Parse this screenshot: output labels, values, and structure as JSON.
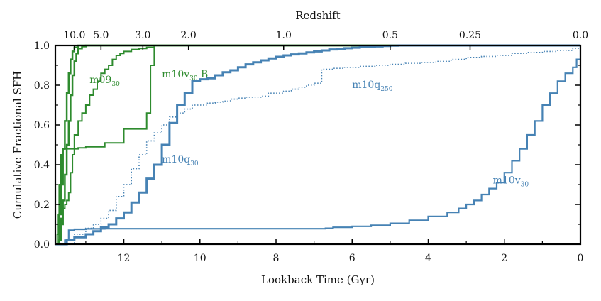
{
  "chart_data": {
    "type": "line",
    "title": "",
    "xlabel": "Lookback Time (Gyr)",
    "ylabel": "Cumulative Fractional SFH",
    "top_axis_label": "Redshift",
    "xlim": [
      13.8,
      0
    ],
    "ylim": [
      0.0,
      1.0
    ],
    "x_ticks": [
      12,
      10,
      8,
      6,
      4,
      2,
      0
    ],
    "y_ticks": [
      0.0,
      0.2,
      0.4,
      0.6,
      0.8,
      1.0
    ],
    "x_tick_labels": [
      "12",
      "10",
      "8",
      "6",
      "4",
      "2",
      "0"
    ],
    "y_tick_labels": [
      "0.0",
      "0.2",
      "0.4",
      "0.6",
      "0.8",
      "1.0"
    ],
    "redshift_ticks": [
      {
        "label": "10.0",
        "t": 13.3
      },
      {
        "label": "5.0",
        "t": 12.6
      },
      {
        "label": "3.0",
        "t": 11.5
      },
      {
        "label": "2.0",
        "t": 10.3
      },
      {
        "label": "1.0",
        "t": 7.8
      },
      {
        "label": "0.5",
        "t": 5.0
      },
      {
        "label": "0.25",
        "t": 2.9
      },
      {
        "label": "0.0",
        "t": 0.0
      }
    ],
    "annotations": [
      {
        "name": "m09",
        "sub": "30",
        "t": 12.9,
        "y": 0.81,
        "color": "#2e8b2e"
      },
      {
        "name": "m10v",
        "sub": "30",
        "suffix": " B",
        "t": 11.0,
        "y": 0.84,
        "color": "#2e8b2e"
      },
      {
        "name": "m10q",
        "sub": "250",
        "t": 6.0,
        "y": 0.785,
        "color": "#4682b4"
      },
      {
        "name": "m10q",
        "sub": "30",
        "t": 11.0,
        "y": 0.41,
        "color": "#4682b4"
      },
      {
        "name": "m10v",
        "sub": "30",
        "t": 2.3,
        "y": 0.305,
        "color": "#4682b4"
      }
    ],
    "series": [
      {
        "name": "m10q30",
        "color": "#4682b4",
        "style": "solid",
        "width": 3,
        "x": [
          13.8,
          13.5,
          13.3,
          13.0,
          12.8,
          12.6,
          12.4,
          12.2,
          12.0,
          11.8,
          11.6,
          11.4,
          11.2,
          11.0,
          10.8,
          10.6,
          10.4,
          10.2,
          10.0,
          9.8,
          9.6,
          9.4,
          9.2,
          9.0,
          8.8,
          8.6,
          8.4,
          8.2,
          8.0,
          7.8,
          7.6,
          7.4,
          7.2,
          7.0,
          6.8,
          6.6,
          6.4,
          6.2,
          6.0,
          5.8,
          5.6,
          5.4,
          5.2,
          5.0,
          4.8,
          0.0
        ],
        "y": [
          0.0,
          0.02,
          0.035,
          0.05,
          0.065,
          0.085,
          0.1,
          0.13,
          0.16,
          0.21,
          0.26,
          0.33,
          0.4,
          0.5,
          0.61,
          0.7,
          0.76,
          0.82,
          0.83,
          0.835,
          0.85,
          0.865,
          0.875,
          0.89,
          0.905,
          0.915,
          0.925,
          0.935,
          0.943,
          0.95,
          0.955,
          0.96,
          0.965,
          0.97,
          0.975,
          0.98,
          0.983,
          0.986,
          0.989,
          0.991,
          0.993,
          0.995,
          0.997,
          0.999,
          1.0,
          1.0
        ]
      },
      {
        "name": "m10q250",
        "color": "#4682b4",
        "style": "dotted",
        "width": 1.6,
        "x": [
          13.8,
          13.3,
          13.0,
          12.8,
          12.6,
          12.4,
          12.2,
          12.0,
          11.8,
          11.6,
          11.4,
          11.2,
          11.0,
          10.8,
          10.6,
          10.4,
          10.2,
          10.0,
          9.8,
          9.6,
          9.4,
          9.2,
          9.0,
          8.8,
          8.6,
          8.4,
          8.2,
          8.0,
          7.8,
          7.6,
          7.4,
          7.2,
          7.0,
          6.8,
          6.5,
          6.2,
          5.8,
          5.4,
          5.0,
          4.6,
          4.2,
          3.8,
          3.4,
          3.0,
          2.6,
          2.2,
          1.8,
          1.4,
          1.0,
          0.6,
          0.2,
          0.0
        ],
        "y": [
          0.0,
          0.05,
          0.08,
          0.1,
          0.13,
          0.17,
          0.24,
          0.3,
          0.38,
          0.45,
          0.52,
          0.56,
          0.6,
          0.64,
          0.66,
          0.68,
          0.7,
          0.7,
          0.71,
          0.715,
          0.72,
          0.73,
          0.735,
          0.74,
          0.74,
          0.745,
          0.76,
          0.76,
          0.77,
          0.78,
          0.79,
          0.8,
          0.81,
          0.88,
          0.885,
          0.89,
          0.895,
          0.9,
          0.905,
          0.91,
          0.915,
          0.92,
          0.93,
          0.94,
          0.945,
          0.95,
          0.96,
          0.965,
          0.97,
          0.975,
          0.985,
          1.0
        ]
      },
      {
        "name": "m10v30",
        "color": "#4682b4",
        "style": "solid",
        "width": 2.2,
        "x": [
          13.8,
          13.55,
          13.45,
          13.3,
          13.0,
          12.5,
          12.0,
          11.0,
          10.0,
          9.0,
          8.0,
          7.0,
          6.7,
          6.5,
          6.0,
          5.5,
          5.0,
          4.5,
          4.0,
          3.5,
          3.2,
          3.0,
          2.8,
          2.6,
          2.4,
          2.2,
          2.0,
          1.8,
          1.6,
          1.4,
          1.2,
          1.0,
          0.8,
          0.6,
          0.4,
          0.2,
          0.1,
          0.0
        ],
        "y": [
          0.0,
          0.02,
          0.07,
          0.075,
          0.077,
          0.078,
          0.078,
          0.078,
          0.078,
          0.078,
          0.078,
          0.078,
          0.08,
          0.085,
          0.09,
          0.095,
          0.105,
          0.12,
          0.14,
          0.16,
          0.18,
          0.2,
          0.22,
          0.25,
          0.28,
          0.31,
          0.36,
          0.42,
          0.48,
          0.55,
          0.62,
          0.7,
          0.76,
          0.82,
          0.86,
          0.89,
          0.93,
          1.0
        ]
      },
      {
        "name": "m10v30 B",
        "color": "#2e8b2e",
        "style": "solid",
        "width": 2,
        "x": [
          13.8,
          13.75,
          13.72,
          13.7,
          13.65,
          13.6,
          13.4,
          13.2,
          13.0,
          12.8,
          12.6,
          12.5,
          12.3,
          12.1,
          12.0,
          12.0,
          11.6,
          11.4,
          11.3,
          11.3,
          11.2,
          11.2,
          0.0
        ],
        "y": [
          0.0,
          0.05,
          0.15,
          0.3,
          0.45,
          0.48,
          0.48,
          0.485,
          0.49,
          0.49,
          0.49,
          0.51,
          0.51,
          0.51,
          0.51,
          0.58,
          0.58,
          0.66,
          0.66,
          0.9,
          0.92,
          1.0,
          1.0
        ]
      },
      {
        "name": "m0930",
        "color": "#2e8b2e",
        "style": "solid",
        "width": 2,
        "x": [
          13.75,
          13.7,
          13.65,
          13.6,
          13.55,
          13.5,
          13.45,
          13.4,
          13.35,
          13.3,
          13.2,
          13.1,
          13.0,
          12.9,
          12.8,
          12.7,
          12.6,
          12.5,
          12.4,
          12.3,
          12.2,
          12.1,
          12.0,
          11.8,
          11.6,
          11.4,
          11.2,
          0.0
        ],
        "y": [
          0.0,
          0.06,
          0.13,
          0.18,
          0.2,
          0.22,
          0.26,
          0.36,
          0.45,
          0.55,
          0.62,
          0.66,
          0.7,
          0.75,
          0.78,
          0.82,
          0.86,
          0.88,
          0.9,
          0.93,
          0.95,
          0.96,
          0.97,
          0.98,
          0.985,
          0.99,
          1.0,
          1.0
        ]
      },
      {
        "name": "green-steep-1",
        "color": "#2e8b2e",
        "style": "solid",
        "width": 2.5,
        "x": [
          13.75,
          13.7,
          13.65,
          13.6,
          13.55,
          13.5,
          13.45,
          13.4,
          13.35,
          13.3,
          13.25,
          13.2,
          13.1,
          13.0,
          0.0
        ],
        "y": [
          0.0,
          0.02,
          0.1,
          0.22,
          0.35,
          0.5,
          0.62,
          0.75,
          0.85,
          0.92,
          0.96,
          0.985,
          0.995,
          1.0,
          1.0
        ]
      },
      {
        "name": "green-steep-2",
        "color": "#2e8b2e",
        "style": "solid",
        "width": 2.5,
        "x": [
          13.75,
          13.7,
          13.65,
          13.6,
          13.55,
          13.5,
          13.45,
          13.4,
          13.35,
          13.3,
          13.2,
          0.0
        ],
        "y": [
          0.0,
          0.15,
          0.3,
          0.48,
          0.62,
          0.76,
          0.86,
          0.93,
          0.97,
          0.99,
          1.0,
          1.0
        ]
      }
    ]
  }
}
